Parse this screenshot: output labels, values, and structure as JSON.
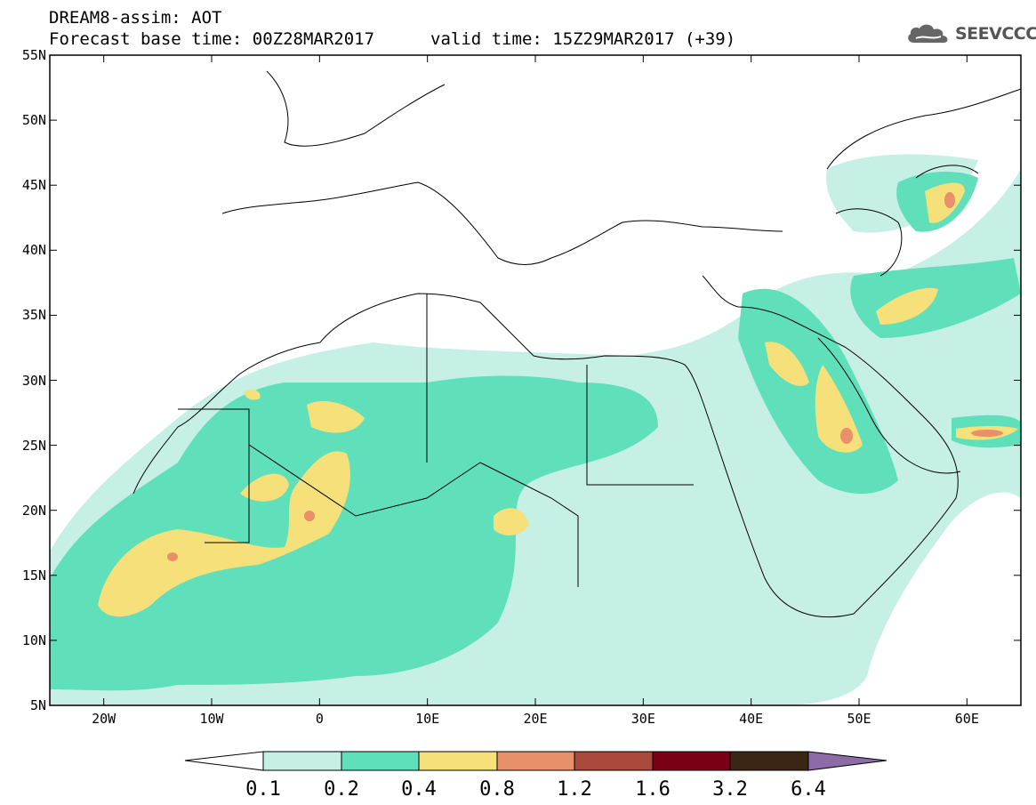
{
  "header": {
    "line1": "DREAM8-assim: AOT",
    "line2": "Forecast base time: 00Z28MAR2017",
    "line3": "valid time: 15Z29MAR2017 (+39)"
  },
  "logo": {
    "text": "SEEVCCC",
    "icon": "cloud-icon"
  },
  "map": {
    "lat_labels": [
      "55N",
      "50N",
      "45N",
      "40N",
      "35N",
      "30N",
      "25N",
      "20N",
      "15N",
      "10N",
      "5N"
    ],
    "lon_labels": [
      "20W",
      "10W",
      "0",
      "10E",
      "20E",
      "30E",
      "40E",
      "50E",
      "60E"
    ],
    "lat_range": [
      5,
      55
    ],
    "lon_range": [
      -25,
      65
    ]
  },
  "colorbar": {
    "labels": [
      "0.1",
      "0.2",
      "0.4",
      "0.8",
      "1.2",
      "1.6",
      "3.2",
      "6.4"
    ],
    "colors": [
      "#ffffff",
      "#c6efe6",
      "#5fe0bb",
      "#f5e07a",
      "#e8906a",
      "#a9493c",
      "#7a0018",
      "#3b2616",
      "#8c6ba6"
    ]
  }
}
